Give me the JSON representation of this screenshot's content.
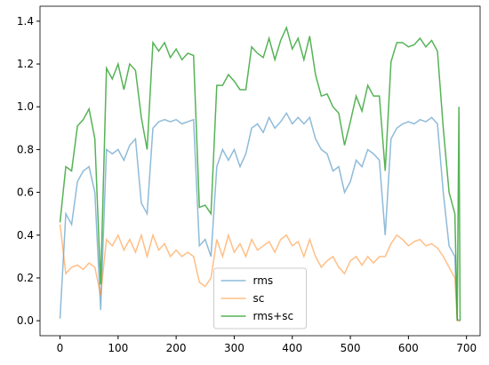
{
  "chart_data": {
    "type": "line",
    "x": [
      0,
      10,
      20,
      30,
      40,
      50,
      60,
      70,
      80,
      90,
      100,
      110,
      120,
      130,
      140,
      150,
      160,
      170,
      180,
      190,
      200,
      210,
      220,
      230,
      240,
      250,
      260,
      270,
      280,
      290,
      300,
      310,
      320,
      330,
      340,
      350,
      360,
      370,
      380,
      390,
      400,
      410,
      420,
      430,
      440,
      450,
      460,
      470,
      480,
      490,
      500,
      510,
      520,
      530,
      540,
      550,
      560,
      570,
      580,
      590,
      600,
      610,
      620,
      630,
      640,
      650,
      660,
      670,
      680,
      684,
      687,
      689
    ],
    "series": [
      {
        "name": "rms",
        "color": "#1f77b4",
        "values": [
          0.01,
          0.5,
          0.45,
          0.65,
          0.7,
          0.72,
          0.6,
          0.05,
          0.8,
          0.78,
          0.8,
          0.75,
          0.82,
          0.85,
          0.55,
          0.5,
          0.9,
          0.93,
          0.94,
          0.93,
          0.94,
          0.92,
          0.93,
          0.94,
          0.35,
          0.38,
          0.3,
          0.72,
          0.8,
          0.75,
          0.8,
          0.72,
          0.78,
          0.9,
          0.92,
          0.88,
          0.95,
          0.9,
          0.93,
          0.97,
          0.92,
          0.95,
          0.92,
          0.95,
          0.85,
          0.8,
          0.78,
          0.7,
          0.72,
          0.6,
          0.65,
          0.75,
          0.72,
          0.8,
          0.78,
          0.75,
          0.4,
          0.85,
          0.9,
          0.92,
          0.93,
          0.92,
          0.94,
          0.93,
          0.95,
          0.92,
          0.6,
          0.35,
          0.3,
          0.01,
          0.0,
          0.0
        ]
      },
      {
        "name": "sc",
        "color": "#ff7f0e",
        "values": [
          0.45,
          0.22,
          0.25,
          0.26,
          0.24,
          0.27,
          0.25,
          0.12,
          0.38,
          0.35,
          0.4,
          0.33,
          0.38,
          0.32,
          0.4,
          0.3,
          0.4,
          0.33,
          0.36,
          0.3,
          0.33,
          0.3,
          0.32,
          0.3,
          0.18,
          0.16,
          0.2,
          0.38,
          0.3,
          0.4,
          0.32,
          0.36,
          0.3,
          0.38,
          0.33,
          0.35,
          0.37,
          0.32,
          0.38,
          0.4,
          0.35,
          0.37,
          0.3,
          0.38,
          0.3,
          0.25,
          0.28,
          0.3,
          0.25,
          0.22,
          0.28,
          0.3,
          0.26,
          0.3,
          0.27,
          0.3,
          0.3,
          0.36,
          0.4,
          0.38,
          0.35,
          0.37,
          0.38,
          0.35,
          0.36,
          0.34,
          0.3,
          0.25,
          0.2,
          0.0,
          0.0,
          0.0
        ]
      },
      {
        "name": "rms+sc",
        "color": "#2ca02c",
        "values": [
          0.46,
          0.72,
          0.7,
          0.91,
          0.94,
          0.99,
          0.85,
          0.17,
          1.18,
          1.13,
          1.2,
          1.08,
          1.2,
          1.17,
          0.95,
          0.8,
          1.3,
          1.26,
          1.3,
          1.23,
          1.27,
          1.22,
          1.25,
          1.24,
          0.53,
          0.54,
          0.5,
          1.1,
          1.1,
          1.15,
          1.12,
          1.08,
          1.08,
          1.28,
          1.25,
          1.23,
          1.32,
          1.22,
          1.31,
          1.37,
          1.27,
          1.32,
          1.22,
          1.33,
          1.15,
          1.05,
          1.06,
          1.0,
          0.97,
          0.82,
          0.93,
          1.05,
          0.98,
          1.1,
          1.05,
          1.05,
          0.7,
          1.21,
          1.3,
          1.3,
          1.28,
          1.29,
          1.32,
          1.28,
          1.31,
          1.26,
          0.9,
          0.6,
          0.5,
          0.0,
          1.0,
          0.0
        ]
      }
    ],
    "xlim": [
      -34.45,
      723.45
    ],
    "ylim": [
      -0.07,
      1.47
    ],
    "xticks": [
      0,
      100,
      200,
      300,
      400,
      500,
      600,
      700
    ],
    "yticks": [
      {
        "value": 0,
        "label": "0.0"
      },
      {
        "value": 0.2,
        "label": "0.2"
      },
      {
        "value": 0.4,
        "label": "0.4"
      },
      {
        "value": 0.6,
        "label": "0.6"
      },
      {
        "value": 0.8,
        "label": "0.8"
      },
      {
        "value": 1,
        "label": "1.0"
      },
      {
        "value": 1.2,
        "label": "1.2"
      },
      {
        "value": 1.4,
        "label": "1.4"
      }
    ],
    "legend": "lower center"
  }
}
